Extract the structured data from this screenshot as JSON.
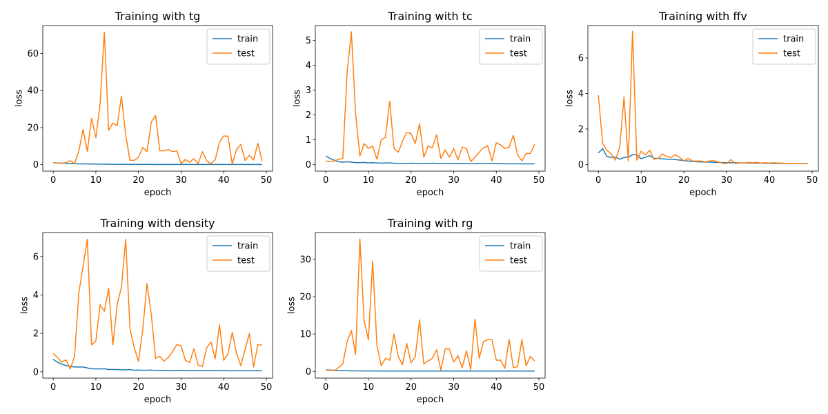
{
  "figure": {
    "colors": {
      "train": "#1f77b4",
      "test": "#ff7f0e"
    }
  },
  "chart_data": [
    {
      "type": "line",
      "title": "Training with tg",
      "xlabel": "epoch",
      "ylabel": "loss",
      "xlim": [
        -2.45,
        51.45
      ],
      "ylim": [
        -3.5,
        75.1
      ],
      "xticks": [
        0,
        10,
        20,
        30,
        40,
        50
      ],
      "yticks": [
        0,
        20,
        40,
        60
      ],
      "grid": false,
      "legend": "top-right",
      "series": [
        {
          "name": "train",
          "values": [
            1.0,
            0.9,
            0.8,
            0.7,
            0.6,
            0.5,
            0.4,
            0.4,
            0.35,
            0.3,
            0.3,
            0.25,
            0.25,
            0.2,
            0.2,
            0.2,
            0.2,
            0.2,
            0.15,
            0.15,
            0.15,
            0.15,
            0.15,
            0.15,
            0.1,
            0.1,
            0.1,
            0.1,
            0.1,
            0.1,
            0.1,
            0.1,
            0.1,
            0.1,
            0.1,
            0.1,
            0.1,
            0.1,
            0.1,
            0.1,
            0.1,
            0.1,
            0.1,
            0.1,
            0.1,
            0.1,
            0.1,
            0.1,
            0.1,
            0.1
          ]
        },
        {
          "name": "test",
          "values": [
            1.0,
            0.8,
            0.8,
            1.0,
            2.2,
            0.5,
            7.3,
            19.0,
            7.2,
            25.0,
            14.5,
            33.0,
            71.5,
            18.5,
            22.5,
            21.0,
            37.0,
            16.0,
            2.3,
            2.3,
            4.0,
            9.3,
            7.0,
            23.0,
            26.5,
            7.5,
            7.5,
            8.2,
            7.0,
            7.5,
            0.5,
            2.8,
            1.3,
            3.2,
            0.5,
            7.0,
            2.0,
            0.4,
            2.8,
            12.0,
            15.5,
            15.3,
            0.3,
            8.0,
            11.0,
            2.2,
            5.0,
            2.5,
            11.5,
            2.0
          ]
        }
      ]
    },
    {
      "type": "line",
      "title": "Training with tc",
      "xlabel": "epoch",
      "ylabel": "loss",
      "xlim": [
        -2.45,
        51.45
      ],
      "ylim": [
        -0.26,
        5.6
      ],
      "xticks": [
        0,
        10,
        20,
        30,
        40,
        50
      ],
      "yticks": [
        0,
        1,
        2,
        3,
        4,
        5
      ],
      "grid": false,
      "legend": "top-right",
      "series": [
        {
          "name": "train",
          "values": [
            0.35,
            0.25,
            0.18,
            0.12,
            0.1,
            0.12,
            0.1,
            0.08,
            0.08,
            0.09,
            0.07,
            0.08,
            0.07,
            0.06,
            0.07,
            0.07,
            0.06,
            0.05,
            0.05,
            0.05,
            0.06,
            0.05,
            0.05,
            0.05,
            0.05,
            0.06,
            0.05,
            0.05,
            0.05,
            0.04,
            0.05,
            0.04,
            0.05,
            0.04,
            0.04,
            0.04,
            0.04,
            0.04,
            0.04,
            0.04,
            0.04,
            0.04,
            0.03,
            0.04,
            0.03,
            0.04,
            0.03,
            0.03,
            0.03,
            0.04
          ]
        },
        {
          "name": "test",
          "values": [
            0.15,
            0.12,
            0.15,
            0.22,
            0.25,
            3.7,
            5.35,
            2.05,
            0.35,
            0.85,
            0.65,
            0.75,
            0.22,
            1.0,
            1.1,
            2.55,
            0.65,
            0.5,
            0.95,
            1.3,
            1.25,
            0.85,
            1.65,
            0.3,
            0.75,
            0.68,
            1.2,
            0.25,
            0.6,
            0.3,
            0.65,
            0.2,
            0.7,
            0.65,
            0.12,
            0.3,
            0.5,
            0.68,
            0.75,
            0.15,
            0.88,
            0.8,
            0.65,
            0.7,
            1.18,
            0.4,
            0.15,
            0.45,
            0.45,
            0.82
          ]
        }
      ]
    },
    {
      "type": "line",
      "title": "Training with ffv",
      "xlabel": "epoch",
      "ylabel": "loss",
      "xlim": [
        -2.45,
        51.45
      ],
      "ylim": [
        -0.37,
        7.82
      ],
      "xticks": [
        0,
        10,
        20,
        30,
        40,
        50
      ],
      "yticks": [
        0,
        2,
        4,
        6
      ],
      "grid": false,
      "legend": "top-right",
      "series": [
        {
          "name": "train",
          "values": [
            0.65,
            0.9,
            0.45,
            0.4,
            0.42,
            0.3,
            0.4,
            0.42,
            0.55,
            0.55,
            0.32,
            0.42,
            0.5,
            0.35,
            0.35,
            0.32,
            0.3,
            0.3,
            0.28,
            0.25,
            0.22,
            0.2,
            0.18,
            0.16,
            0.15,
            0.14,
            0.14,
            0.12,
            0.12,
            0.11,
            0.1,
            0.1,
            0.1,
            0.09,
            0.09,
            0.09,
            0.08,
            0.08,
            0.07,
            0.07,
            0.07,
            0.06,
            0.06,
            0.06,
            0.05,
            0.05,
            0.05,
            0.05,
            0.05,
            0.05
          ]
        },
        {
          "name": "test",
          "values": [
            3.9,
            1.2,
            0.8,
            0.6,
            0.25,
            1.0,
            3.8,
            0.2,
            7.5,
            0.25,
            0.75,
            0.55,
            0.8,
            0.3,
            0.35,
            0.6,
            0.45,
            0.4,
            0.55,
            0.4,
            0.2,
            0.35,
            0.2,
            0.2,
            0.2,
            0.15,
            0.2,
            0.22,
            0.15,
            0.08,
            0.05,
            0.28,
            0.05,
            0.1,
            0.08,
            0.12,
            0.1,
            0.12,
            0.08,
            0.1,
            0.08,
            0.1,
            0.08,
            0.08,
            0.06,
            0.05,
            0.05,
            0.05,
            0.05,
            0.05
          ]
        }
      ]
    },
    {
      "type": "line",
      "title": "Training with density",
      "xlabel": "epoch",
      "ylabel": "loss",
      "xlim": [
        -2.45,
        51.45
      ],
      "ylim": [
        -0.33,
        7.25
      ],
      "xticks": [
        0,
        10,
        20,
        30,
        40,
        50
      ],
      "yticks": [
        0,
        2,
        4,
        6
      ],
      "grid": false,
      "legend": "top-right",
      "series": [
        {
          "name": "train",
          "values": [
            0.65,
            0.5,
            0.4,
            0.32,
            0.28,
            0.25,
            0.25,
            0.25,
            0.2,
            0.16,
            0.15,
            0.15,
            0.16,
            0.12,
            0.12,
            0.12,
            0.1,
            0.1,
            0.12,
            0.08,
            0.09,
            0.08,
            0.08,
            0.09,
            0.07,
            0.07,
            0.07,
            0.06,
            0.06,
            0.07,
            0.06,
            0.06,
            0.06,
            0.06,
            0.06,
            0.06,
            0.06,
            0.06,
            0.06,
            0.05,
            0.06,
            0.05,
            0.05,
            0.05,
            0.05,
            0.05,
            0.05,
            0.05,
            0.05,
            0.05
          ]
        },
        {
          "name": "test",
          "values": [
            0.95,
            0.75,
            0.5,
            0.62,
            0.15,
            0.8,
            4.1,
            5.5,
            6.9,
            1.4,
            1.6,
            3.5,
            3.15,
            4.35,
            1.4,
            3.5,
            4.4,
            6.9,
            2.25,
            1.25,
            0.55,
            2.2,
            4.6,
            3.0,
            0.7,
            0.8,
            0.55,
            0.75,
            1.05,
            1.42,
            1.35,
            0.6,
            0.48,
            1.2,
            0.35,
            0.28,
            1.25,
            1.55,
            0.68,
            2.45,
            0.6,
            0.92,
            2.05,
            0.95,
            0.32,
            1.15,
            2.0,
            0.25,
            1.42,
            1.38
          ]
        }
      ]
    },
    {
      "type": "line",
      "title": "Training with rg",
      "xlabel": "epoch",
      "ylabel": "loss",
      "xlim": [
        -2.45,
        51.45
      ],
      "ylim": [
        -1.8,
        37.2
      ],
      "xticks": [
        0,
        10,
        20,
        30,
        40,
        50
      ],
      "yticks": [
        0,
        10,
        20,
        30
      ],
      "grid": false,
      "legend": "top-right",
      "series": [
        {
          "name": "train",
          "values": [
            0.4,
            0.38,
            0.3,
            0.25,
            0.2,
            0.18,
            0.15,
            0.14,
            0.13,
            0.12,
            0.12,
            0.11,
            0.11,
            0.1,
            0.1,
            0.1,
            0.1,
            0.1,
            0.1,
            0.1,
            0.1,
            0.1,
            0.1,
            0.1,
            0.1,
            0.1,
            0.1,
            0.1,
            0.1,
            0.1,
            0.1,
            0.1,
            0.1,
            0.1,
            0.1,
            0.1,
            0.1,
            0.1,
            0.1,
            0.1,
            0.1,
            0.1,
            0.1,
            0.1,
            0.1,
            0.1,
            0.1,
            0.1,
            0.1,
            0.1
          ]
        },
        {
          "name": "test",
          "values": [
            0.3,
            0.3,
            0.2,
            1.0,
            2.0,
            8.0,
            11.0,
            4.5,
            35.5,
            13.5,
            8.5,
            29.5,
            7.0,
            1.5,
            3.5,
            3.0,
            10.0,
            4.0,
            1.8,
            7.5,
            2.3,
            4.0,
            13.8,
            2.0,
            2.8,
            3.5,
            5.8,
            0.3,
            6.0,
            6.0,
            2.5,
            4.2,
            1.0,
            5.5,
            0.5,
            14.0,
            3.5,
            8.0,
            8.5,
            8.5,
            3.0,
            3.0,
            0.8,
            8.6,
            1.0,
            1.3,
            8.5,
            1.5,
            4.0,
            2.8
          ]
        }
      ]
    }
  ]
}
